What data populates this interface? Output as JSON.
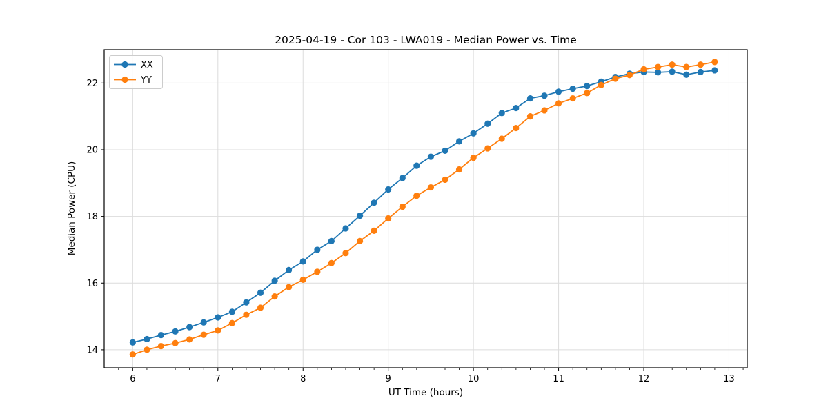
{
  "chart_data": {
    "type": "line",
    "title": "2025-04-19 - Cor 103 - LWA019 - Median Power vs. Time",
    "xlabel": "UT Time (hours)",
    "ylabel": "Median Power (CPU)",
    "xlim": [
      5.665,
      13.215
    ],
    "ylim": [
      13.46,
      23.0
    ],
    "xticks": [
      6,
      7,
      8,
      9,
      10,
      11,
      12,
      13
    ],
    "yticks": [
      14,
      16,
      18,
      20,
      22
    ],
    "minor_xtick_step": 0.16667,
    "grid": true,
    "legend_position": "upper-left",
    "x": [
      6.0,
      6.167,
      6.333,
      6.5,
      6.667,
      6.833,
      7.0,
      7.167,
      7.333,
      7.5,
      7.667,
      7.833,
      8.0,
      8.167,
      8.333,
      8.5,
      8.667,
      8.833,
      9.0,
      9.167,
      9.333,
      9.5,
      9.667,
      9.833,
      10.0,
      10.167,
      10.333,
      10.5,
      10.667,
      10.833,
      11.0,
      11.167,
      11.333,
      11.5,
      11.667,
      11.833,
      12.0,
      12.167,
      12.333,
      12.5,
      12.667,
      12.833
    ],
    "series": [
      {
        "name": "XX",
        "color": "#1f77b4",
        "marker": "circle",
        "values": [
          14.22,
          14.32,
          14.44,
          14.55,
          14.68,
          14.82,
          14.97,
          15.14,
          15.42,
          15.71,
          16.07,
          16.39,
          16.65,
          17.0,
          17.26,
          17.64,
          18.02,
          18.41,
          18.81,
          19.15,
          19.52,
          19.79,
          19.97,
          20.25,
          20.49,
          20.78,
          21.1,
          21.25,
          21.54,
          21.62,
          21.74,
          21.83,
          21.91,
          22.04,
          22.18,
          22.28,
          22.33,
          22.32,
          22.34,
          22.25,
          22.33,
          22.38
        ]
      },
      {
        "name": "YY",
        "color": "#ff7f0e",
        "marker": "circle",
        "values": [
          13.86,
          14.0,
          14.11,
          14.2,
          14.31,
          14.45,
          14.58,
          14.8,
          15.05,
          15.26,
          15.6,
          15.88,
          16.1,
          16.34,
          16.6,
          16.9,
          17.26,
          17.57,
          17.94,
          18.29,
          18.62,
          18.87,
          19.1,
          19.41,
          19.76,
          20.04,
          20.33,
          20.65,
          21.0,
          21.18,
          21.39,
          21.54,
          21.7,
          21.94,
          22.13,
          22.24,
          22.41,
          22.48,
          22.55,
          22.48,
          22.55,
          22.63
        ]
      }
    ],
    "colors": {
      "grid": "#dcdcdc",
      "spine": "#000000",
      "background": "#ffffff",
      "text": "#000000"
    }
  }
}
